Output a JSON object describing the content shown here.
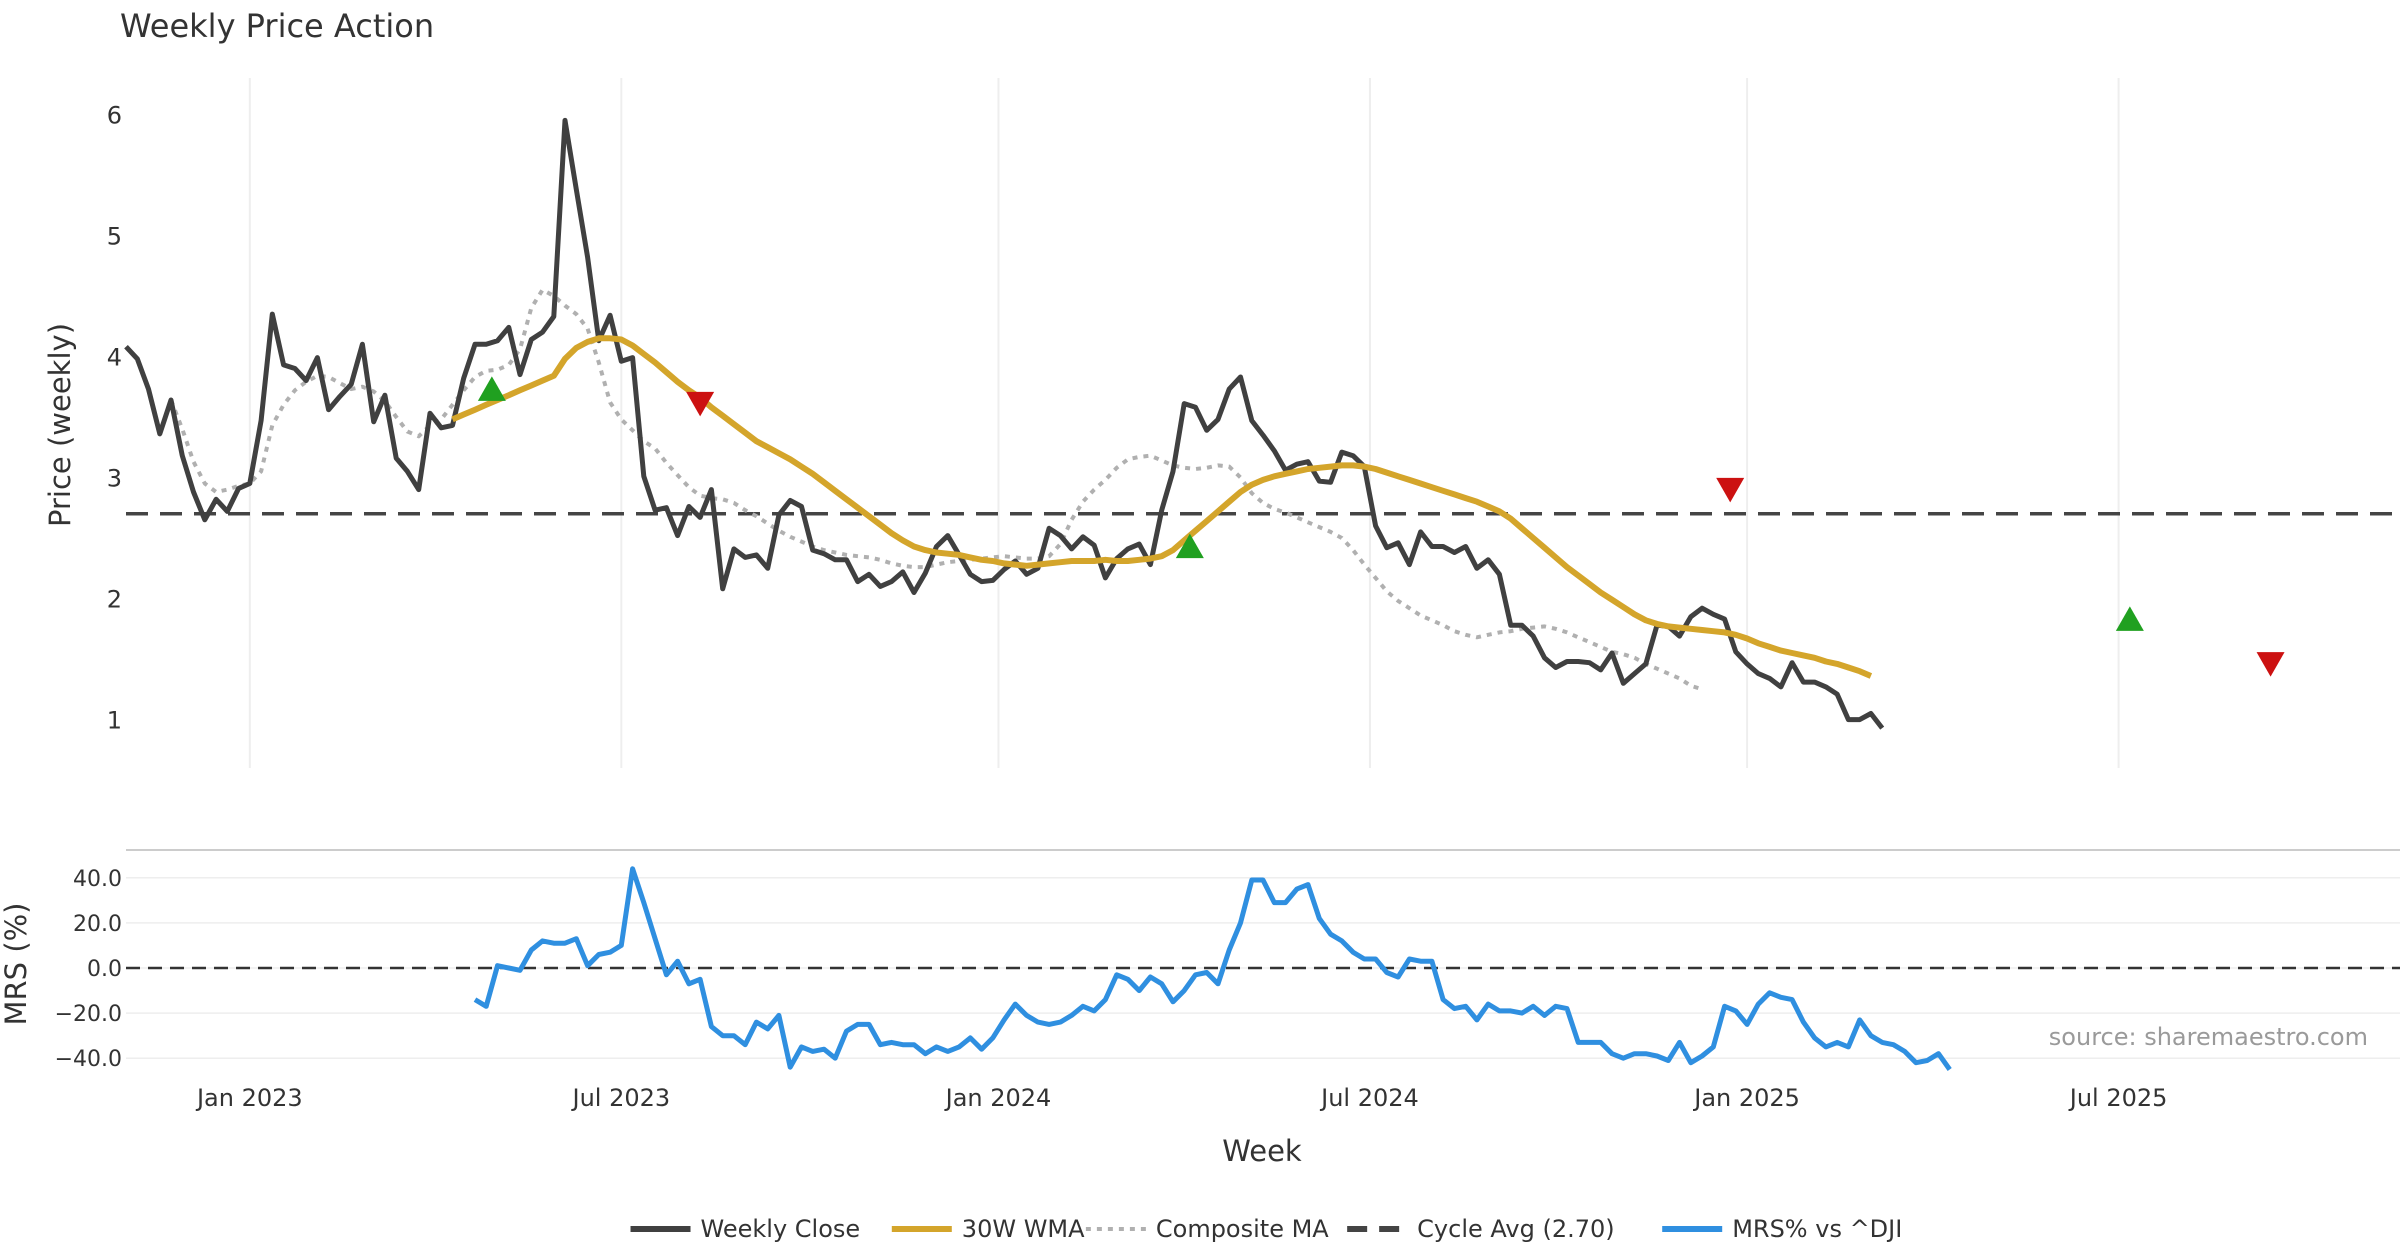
{
  "chart_data": [
    {
      "panel": "price",
      "type": "line",
      "title": "Weekly Price Action",
      "xlabel": "",
      "ylabel": "Price (weekly)",
      "ylim": [
        0.6,
        6.3
      ],
      "yticks": [
        1,
        2,
        3,
        4,
        5,
        6
      ],
      "x_domain_weeks": [
        0,
        198
      ],
      "x_ticks": [
        {
          "label": "Jan 2023",
          "week": 11
        },
        {
          "label": "Jul 2023",
          "week": 44
        },
        {
          "label": "Jan 2024",
          "week": 77.5
        },
        {
          "label": "Jul 2024",
          "week": 110.5
        },
        {
          "label": "Jan 2025",
          "week": 144
        },
        {
          "label": "Jul 2025",
          "week": 177
        }
      ],
      "grid": true,
      "series": [
        {
          "name": "Weekly Close",
          "color": "#404040",
          "start_week": 0,
          "values": [
            4.08,
            3.98,
            3.73,
            3.36,
            3.64,
            3.18,
            2.88,
            2.65,
            2.82,
            2.72,
            2.91,
            2.95,
            3.47,
            4.35,
            3.93,
            3.9,
            3.8,
            3.99,
            3.56,
            3.67,
            3.77,
            4.1,
            3.46,
            3.68,
            3.16,
            3.05,
            2.9,
            3.53,
            3.41,
            3.43,
            3.82,
            4.1,
            4.1,
            4.13,
            4.24,
            3.85,
            4.14,
            4.2,
            4.33,
            5.95,
            5.38,
            4.82,
            4.13,
            4.34,
            3.96,
            3.99,
            3.01,
            2.73,
            2.75,
            2.52,
            2.76,
            2.67,
            2.9,
            2.08,
            2.41,
            2.34,
            2.36,
            2.25,
            2.69,
            2.81,
            2.76,
            2.4,
            2.37,
            2.32,
            2.32,
            2.14,
            2.2,
            2.1,
            2.14,
            2.22,
            2.05,
            2.21,
            2.43,
            2.52,
            2.36,
            2.2,
            2.14,
            2.15,
            2.24,
            2.31,
            2.2,
            2.25,
            2.58,
            2.52,
            2.41,
            2.51,
            2.44,
            2.17,
            2.33,
            2.41,
            2.45,
            2.28,
            2.73,
            3.05,
            3.61,
            3.58,
            3.39,
            3.48,
            3.73,
            3.83,
            3.47,
            3.35,
            3.22,
            3.06,
            3.11,
            3.13,
            2.97,
            2.96,
            3.21,
            3.18,
            3.09,
            2.6,
            2.42,
            2.46,
            2.28,
            2.55,
            2.43,
            2.43,
            2.38,
            2.43,
            2.25,
            2.32,
            2.2,
            1.78,
            1.78,
            1.69,
            1.51,
            1.43,
            1.48,
            1.48,
            1.47,
            1.41,
            1.55,
            1.3,
            1.38,
            1.46,
            1.78,
            1.77,
            1.69,
            1.85,
            1.92,
            1.87,
            1.83,
            1.56,
            1.46,
            1.38,
            1.34,
            1.27,
            1.47,
            1.31,
            1.31,
            1.27,
            1.21,
            1.0,
            1.0,
            1.05,
            0.93
          ]
        },
        {
          "name": "30W WMA",
          "color": "#d4a52b",
          "start_week": 29,
          "values": [
            3.48,
            3.52,
            3.56,
            3.6,
            3.64,
            3.68,
            3.72,
            3.76,
            3.8,
            3.84,
            3.98,
            4.07,
            4.12,
            4.15,
            4.15,
            4.14,
            4.09,
            4.02,
            3.95,
            3.87,
            3.79,
            3.72,
            3.66,
            3.58,
            3.51,
            3.44,
            3.37,
            3.3,
            3.25,
            3.2,
            3.15,
            3.09,
            3.03,
            2.96,
            2.89,
            2.82,
            2.75,
            2.68,
            2.61,
            2.54,
            2.48,
            2.43,
            2.4,
            2.38,
            2.37,
            2.36,
            2.34,
            2.32,
            2.31,
            2.29,
            2.28,
            2.27,
            2.28,
            2.29,
            2.3,
            2.31,
            2.31,
            2.31,
            2.32,
            2.31,
            2.31,
            2.32,
            2.33,
            2.35,
            2.4,
            2.48,
            2.56,
            2.64,
            2.72,
            2.8,
            2.88,
            2.94,
            2.98,
            3.01,
            3.03,
            3.05,
            3.07,
            3.08,
            3.09,
            3.1,
            3.1,
            3.09,
            3.07,
            3.04,
            3.01,
            2.98,
            2.95,
            2.92,
            2.89,
            2.86,
            2.83,
            2.8,
            2.76,
            2.72,
            2.66,
            2.58,
            2.5,
            2.42,
            2.34,
            2.26,
            2.19,
            2.12,
            2.05,
            1.99,
            1.93,
            1.87,
            1.82,
            1.79,
            1.77,
            1.76,
            1.75,
            1.74,
            1.73,
            1.72,
            1.7,
            1.67,
            1.63,
            1.6,
            1.57,
            1.55,
            1.53,
            1.51,
            1.48,
            1.46,
            1.43,
            1.4,
            1.36
          ]
        },
        {
          "name": "Composite MA",
          "color": "#b0b0b0",
          "start_week": 4,
          "values": [
            3.64,
            3.4,
            3.13,
            2.95,
            2.88,
            2.9,
            2.93,
            2.95,
            3.05,
            3.43,
            3.6,
            3.72,
            3.79,
            3.84,
            3.83,
            3.78,
            3.73,
            3.75,
            3.71,
            3.63,
            3.5,
            3.38,
            3.34,
            3.43,
            3.48,
            3.6,
            3.72,
            3.83,
            3.88,
            3.89,
            3.93,
            4.06,
            4.4,
            4.55,
            4.5,
            4.42,
            4.35,
            4.23,
            3.95,
            3.62,
            3.48,
            3.39,
            3.3,
            3.24,
            3.12,
            3.02,
            2.92,
            2.85,
            2.83,
            2.82,
            2.79,
            2.73,
            2.68,
            2.62,
            2.56,
            2.51,
            2.47,
            2.43,
            2.4,
            2.38,
            2.36,
            2.35,
            2.34,
            2.32,
            2.29,
            2.27,
            2.26,
            2.26,
            2.28,
            2.3,
            2.31,
            2.32,
            2.33,
            2.34,
            2.35,
            2.34,
            2.33,
            2.33,
            2.35,
            2.45,
            2.65,
            2.8,
            2.9,
            2.98,
            3.08,
            3.15,
            3.17,
            3.18,
            3.14,
            3.1,
            3.08,
            3.07,
            3.08,
            3.1,
            3.09,
            3.0,
            2.87,
            2.79,
            2.74,
            2.71,
            2.67,
            2.63,
            2.59,
            2.55,
            2.5,
            2.4,
            2.28,
            2.17,
            2.06,
            1.98,
            1.92,
            1.86,
            1.82,
            1.78,
            1.73,
            1.7,
            1.68,
            1.7,
            1.72,
            1.73,
            1.75,
            1.76,
            1.77,
            1.75,
            1.72,
            1.68,
            1.64,
            1.6,
            1.56,
            1.54,
            1.51,
            1.46,
            1.42,
            1.38,
            1.34,
            1.28,
            1.25
          ]
        }
      ],
      "reference_line": {
        "name": "Cycle Avg (2.70)",
        "value": 2.7,
        "color": "#444444"
      },
      "markers": [
        {
          "type": "buy",
          "week": 32.5,
          "value": 3.72,
          "color": "#20a020"
        },
        {
          "type": "sell",
          "week": 51,
          "value": 3.62,
          "color": "#cc1111"
        },
        {
          "type": "buy",
          "week": 94.5,
          "value": 2.42,
          "color": "#20a020"
        },
        {
          "type": "sell",
          "week": 142.5,
          "value": 2.91,
          "color": "#cc1111"
        },
        {
          "type": "buy",
          "week": 178,
          "value": 1.82,
          "color": "#20a020"
        },
        {
          "type": "sell",
          "week": 190.5,
          "value": 1.47,
          "color": "#cc1111"
        }
      ]
    },
    {
      "panel": "mrs",
      "type": "line",
      "title": "",
      "xlabel": "Week",
      "ylabel": "MRS (%)",
      "ylim": [
        -47,
        47
      ],
      "yticks": [
        40,
        20,
        0,
        -20,
        -40
      ],
      "ytick_labels": [
        "40.0",
        "20.0",
        "0.0",
        "−20.0",
        "−40.0"
      ],
      "zero_line": true,
      "series": [
        {
          "name": "MRS% vs ^DJI",
          "color": "#2f8fe0",
          "start_week": 31,
          "values": [
            -14,
            -17,
            1,
            0,
            -1,
            8,
            12,
            11,
            11,
            13,
            1,
            6,
            7,
            10,
            44,
            29,
            13,
            -3,
            3,
            -7,
            -5,
            -26,
            -30,
            -30,
            -34,
            -24,
            -27,
            -21,
            -44,
            -35,
            -37,
            -36,
            -40,
            -28,
            -25,
            -25,
            -34,
            -33,
            -34,
            -34,
            -38,
            -35,
            -37,
            -35,
            -31,
            -36,
            -31,
            -23,
            -16,
            -21,
            -24,
            -25,
            -24,
            -21,
            -17,
            -19,
            -14,
            -3,
            -5,
            -10,
            -4,
            -7,
            -15,
            -10,
            -3,
            -2,
            -7,
            8,
            20,
            39,
            39,
            29,
            29,
            35,
            37,
            22,
            15,
            12,
            7,
            4,
            4,
            -2,
            -4,
            4,
            3,
            3,
            -14,
            -18,
            -17,
            -23,
            -16,
            -19,
            -19,
            -20,
            -17,
            -21,
            -17,
            -18,
            -33,
            -33,
            -33,
            -38,
            -40,
            -38,
            -38,
            -39,
            -41,
            -33,
            -42,
            -39,
            -35,
            -17,
            -19,
            -25,
            -16,
            -11,
            -13,
            -14,
            -24,
            -31,
            -35,
            -33,
            -35,
            -23,
            -30,
            -33,
            -34,
            -37,
            -42,
            -41,
            -38,
            -45
          ]
        }
      ]
    }
  ],
  "source_note": "source: sharemaestro.com",
  "legend": [
    {
      "label": "Weekly Close",
      "style": "solid",
      "color": "#404040"
    },
    {
      "label": "30W WMA",
      "style": "solid",
      "color": "#d4a52b"
    },
    {
      "label": "Composite MA",
      "style": "dotted",
      "color": "#b0b0b0"
    },
    {
      "label": "Cycle Avg (2.70)",
      "style": "dashed",
      "color": "#444444"
    },
    {
      "label": "MRS% vs ^DJI",
      "style": "solid",
      "color": "#2f8fe0"
    }
  ]
}
